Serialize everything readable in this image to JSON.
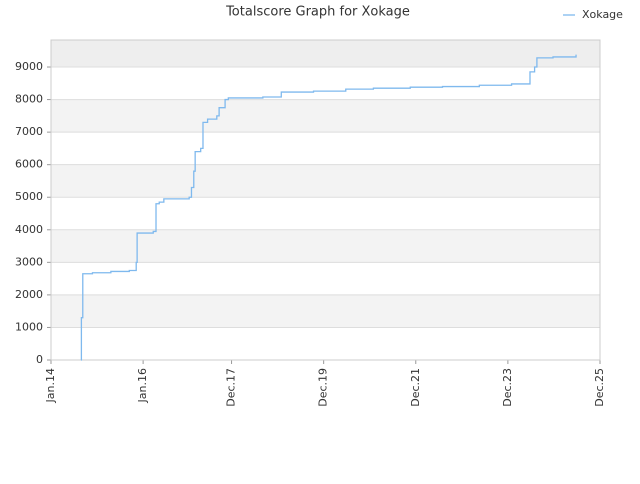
{
  "chart_data": {
    "type": "line",
    "title": "Totalscore Graph for Xokage",
    "step": true,
    "series": [
      {
        "name": "Xokage",
        "color": "#7fb9ee",
        "x": [
          2014.65,
          2014.66,
          2014.69,
          2014.9,
          2015.3,
          2015.7,
          2015.85,
          2015.87,
          2016.22,
          2016.28,
          2016.35,
          2016.45,
          2017.0,
          2017.05,
          2017.1,
          2017.13,
          2017.25,
          2017.3,
          2017.4,
          2017.6,
          2017.65,
          2017.78,
          2017.85,
          2018.6,
          2019.0,
          2019.7,
          2020.4,
          2021.0,
          2021.8,
          2022.5,
          2023.3,
          2024.0,
          2024.4,
          2024.5,
          2024.55,
          2024.9,
          2025.4
        ],
        "values": [
          0,
          1300,
          2650,
          2680,
          2720,
          2750,
          3000,
          3900,
          3950,
          4800,
          4850,
          4950,
          5000,
          5300,
          5800,
          6400,
          6500,
          7300,
          7400,
          7500,
          7750,
          8000,
          8050,
          8080,
          8230,
          8260,
          8320,
          8350,
          8380,
          8400,
          8440,
          8480,
          8850,
          9000,
          9280,
          9310,
          9380
        ]
      }
    ],
    "xlim": [
      2014.0,
      2025.92
    ],
    "xticks": [
      {
        "value": 2014.0,
        "label": "Jan.14"
      },
      {
        "value": 2016.0,
        "label": "Jan.16"
      },
      {
        "value": 2017.92,
        "label": "Dec.17"
      },
      {
        "value": 2019.92,
        "label": "Dec.19"
      },
      {
        "value": 2021.92,
        "label": "Dec.21"
      },
      {
        "value": 2023.92,
        "label": "Dec.23"
      },
      {
        "value": 2025.92,
        "label": "Dec.25"
      }
    ],
    "ylim": [
      0,
      9830
    ],
    "yticks": [
      0,
      1000,
      2000,
      3000,
      4000,
      5000,
      6000,
      7000,
      8000,
      9000
    ],
    "grid": true,
    "legend": "top-right"
  }
}
